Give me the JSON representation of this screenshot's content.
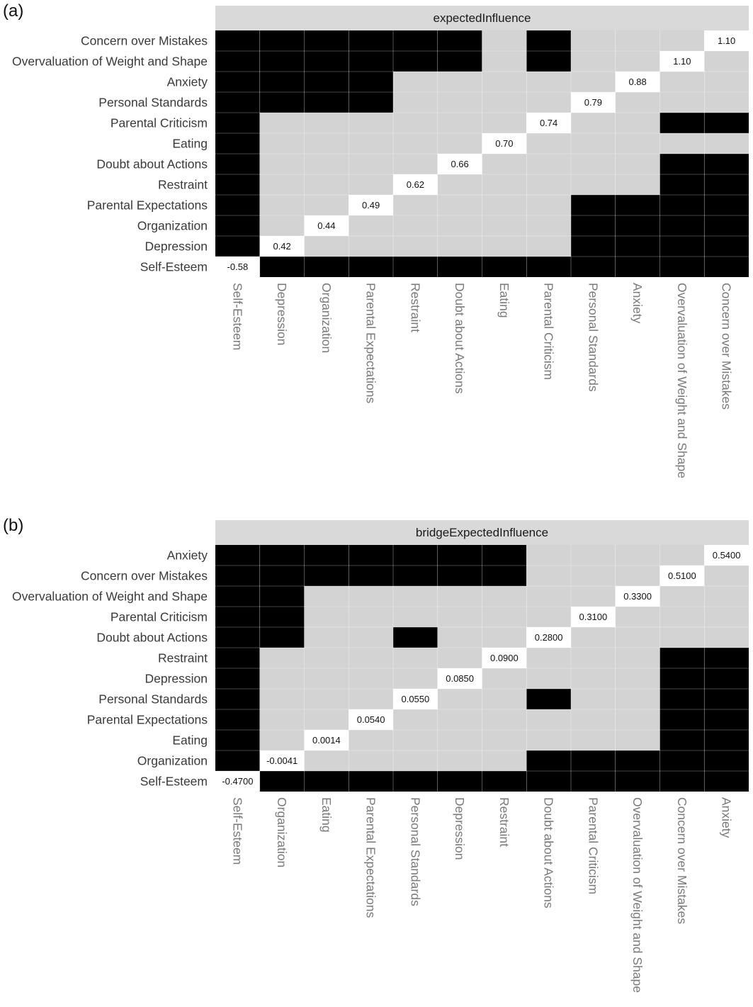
{
  "chart_data": [
    {
      "type": "heatmap",
      "panel_label": "(a)",
      "title": "expectedInfluence",
      "rows_top_to_bottom": [
        "Concern over Mistakes",
        "Overvaluation of Weight and Shape",
        "Anxiety",
        "Personal Standards",
        "Parental Criticism",
        "Eating",
        "Doubt about Actions",
        "Restraint",
        "Parental Expectations",
        "Organization",
        "Depression",
        "Self-Esteem"
      ],
      "columns": [
        "Self-Esteem",
        "Depression",
        "Organization",
        "Parental Expectations",
        "Restraint",
        "Doubt about Actions",
        "Eating",
        "Parental Criticism",
        "Personal Standards",
        "Anxiety",
        "Overvaluation of Weight and Shape",
        "Concern over Mistakes"
      ],
      "diagonal_values": [
        {
          "node": "Self-Esteem",
          "value": "-0.58"
        },
        {
          "node": "Depression",
          "value": "0.42"
        },
        {
          "node": "Organization",
          "value": "0.44"
        },
        {
          "node": "Parental Expectations",
          "value": "0.49"
        },
        {
          "node": "Restraint",
          "value": "0.62"
        },
        {
          "node": "Doubt about Actions",
          "value": "0.66"
        },
        {
          "node": "Eating",
          "value": "0.70"
        },
        {
          "node": "Parental Criticism",
          "value": "0.74"
        },
        {
          "node": "Personal Standards",
          "value": "0.79"
        },
        {
          "node": "Anxiety",
          "value": "0.88"
        },
        {
          "node": "Overvaluation of Weight and Shape",
          "value": "1.10"
        },
        {
          "node": "Concern over Mistakes",
          "value": "1.10"
        }
      ],
      "cell_matrix": [
        "BBBBBBGBGGGW",
        "BBBBBBGBGGWG",
        "BBBBGGGGGWGG",
        "BBBBGGGGWGGG",
        "BGGGGGGWGGBB",
        "BGGGGGWGGGGG",
        "BGGGGWGGGGBB",
        "BGGGWGGGGGBB",
        "BGGWGGGGBBBB",
        "BGWGGGGGBBBB",
        "BWGGGGGGBBBB",
        "WBBBBBBBBBBB"
      ],
      "cell_legend": {
        "B": "significant difference",
        "G": "no significant difference",
        "W": "diagonal value"
      }
    },
    {
      "type": "heatmap",
      "panel_label": "(b)",
      "title": "bridgeExpectedInfluence",
      "rows_top_to_bottom": [
        "Anxiety",
        "Concern over Mistakes",
        "Overvaluation of Weight and Shape",
        "Parental Criticism",
        "Doubt about Actions",
        "Restraint",
        "Depression",
        "Personal Standards",
        "Parental Expectations",
        "Eating",
        "Organization",
        "Self-Esteem"
      ],
      "columns": [
        "Self-Esteem",
        "Organization",
        "Eating",
        "Parental Expectations",
        "Personal Standards",
        "Depression",
        "Restraint",
        "Doubt about Actions",
        "Parental Criticism",
        "Overvaluation of Weight and Shape",
        "Concern over Mistakes",
        "Anxiety"
      ],
      "diagonal_values": [
        {
          "node": "Self-Esteem",
          "value": "-0.4700"
        },
        {
          "node": "Organization",
          "value": "-0.0041"
        },
        {
          "node": "Eating",
          "value": "0.0014"
        },
        {
          "node": "Parental Expectations",
          "value": "0.0540"
        },
        {
          "node": "Personal Standards",
          "value": "0.0550"
        },
        {
          "node": "Depression",
          "value": "0.0850"
        },
        {
          "node": "Restraint",
          "value": "0.0900"
        },
        {
          "node": "Doubt about Actions",
          "value": "0.2800"
        },
        {
          "node": "Parental Criticism",
          "value": "0.3100"
        },
        {
          "node": "Overvaluation of Weight and Shape",
          "value": "0.3300"
        },
        {
          "node": "Concern over Mistakes",
          "value": "0.5100"
        },
        {
          "node": "Anxiety",
          "value": "0.5400"
        }
      ],
      "cell_matrix": [
        "BBBBBBBGGGGW",
        "BBBBBBBGGGWG",
        "BBGGGGGGGWGG",
        "BBGGGGGGWGGG",
        "BBGGBGGWGGGG",
        "BGGGGGWGGGBB",
        "BGGGGWGGGGBB",
        "BGGGWGGBGGBB",
        "BGGWGGGGGGBB",
        "BGWGGGGGGGBB",
        "BWGGGGGBBBBB",
        "WBBBBBBBBBBB"
      ],
      "cell_legend": {
        "B": "significant difference",
        "G": "no significant difference",
        "W": "diagonal value"
      }
    }
  ],
  "colors": {
    "significant": "#000000",
    "nonsignificant": "#d3d3d3",
    "diagonal": "#ffffff",
    "strip": "#d9d9d9",
    "gridline": "#ffffff"
  }
}
